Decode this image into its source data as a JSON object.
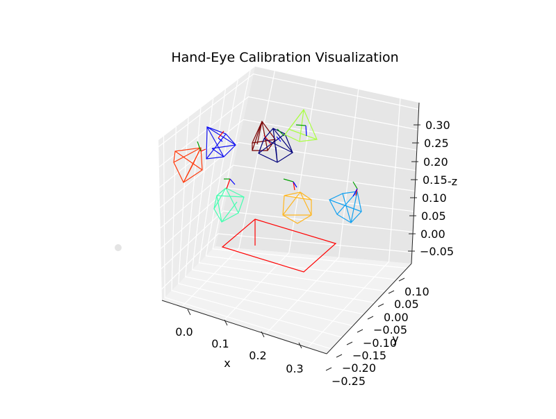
{
  "chart_data": {
    "type": "3d-wireframe",
    "title": "Hand-Eye Calibration Visualization",
    "xlabel": "x",
    "ylabel": "y",
    "zlabel": "-z",
    "x_ticks": [
      "0.0",
      "0.1",
      "0.2",
      "0.3"
    ],
    "y_ticks": [
      "0.10",
      "0.05",
      "0.00",
      "−0.05",
      "−0.10",
      "−0.15",
      "−0.20",
      "−0.25"
    ],
    "z_ticks": [
      "0.30",
      "0.25",
      "0.20",
      "0.15",
      "0.10",
      "0.05",
      "0.00",
      "−0.05"
    ],
    "grid": true,
    "camera_colors": [
      "#ff3a0c",
      "#1010f0",
      "#7a0000",
      "#00007a",
      "#aaff44",
      "#44ffb0",
      "#ffb620",
      "#10a0f0"
    ],
    "target_color": "#ff0000"
  }
}
